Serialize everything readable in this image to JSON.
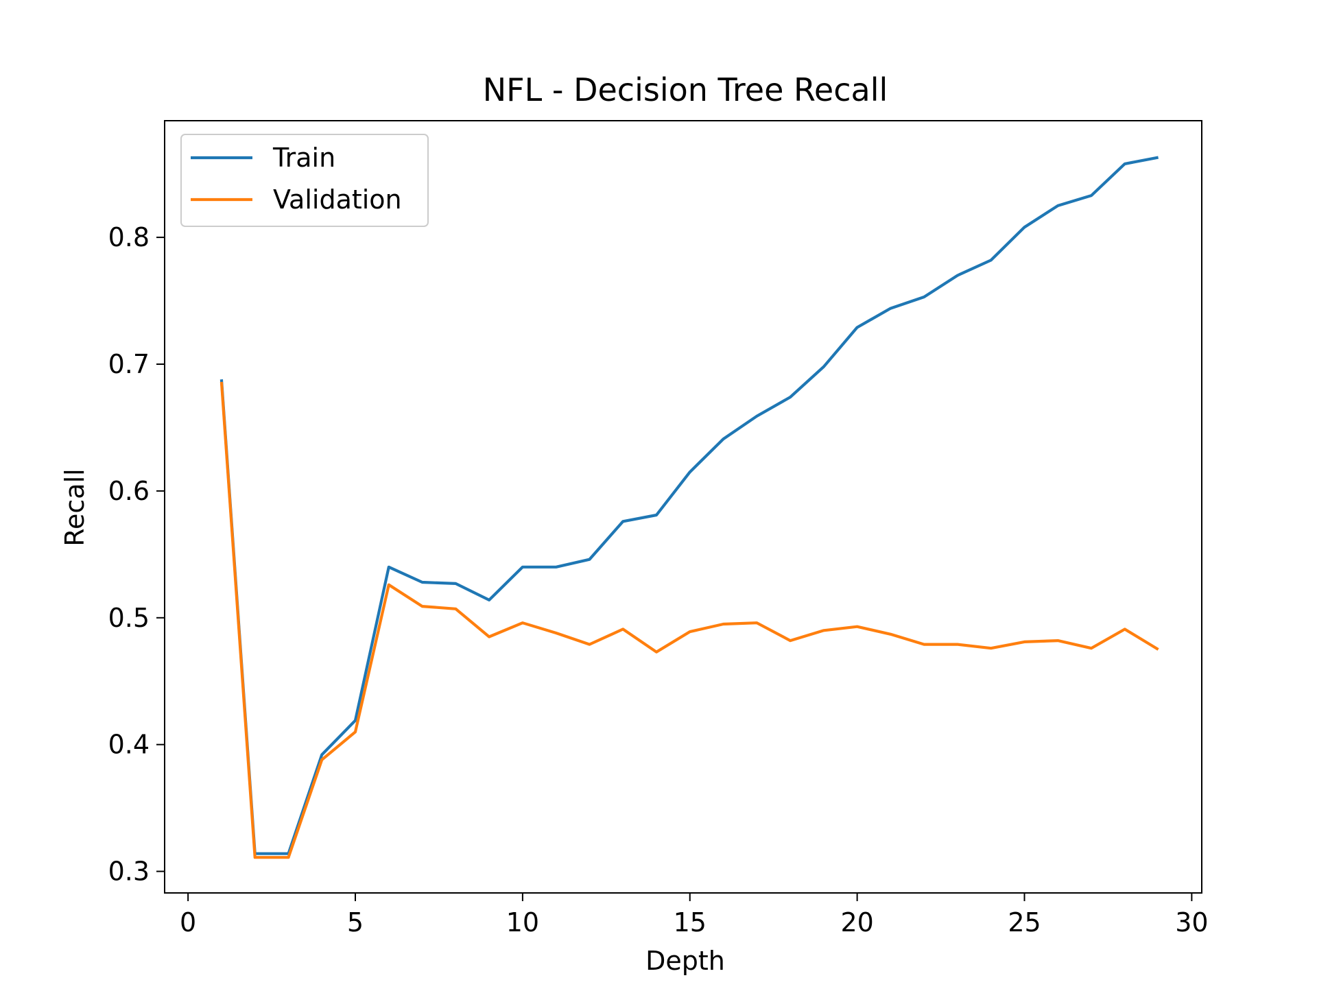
{
  "chart_data": {
    "type": "line",
    "title": "NFL - Decision Tree Recall",
    "xlabel": "Depth",
    "ylabel": "Recall",
    "xlim": [
      -0.7,
      30.3
    ],
    "ylim": [
      0.283,
      0.892
    ],
    "xticks": [
      0,
      5,
      10,
      15,
      20,
      25,
      30
    ],
    "xtick_labels": [
      "0",
      "5",
      "10",
      "15",
      "20",
      "25",
      "30"
    ],
    "yticks": [
      0.3,
      0.4,
      0.5,
      0.6,
      0.7,
      0.8
    ],
    "ytick_labels": [
      "0.3",
      "0.4",
      "0.5",
      "0.6",
      "0.7",
      "0.8"
    ],
    "grid": false,
    "legend_position": "top-left",
    "x": [
      1,
      2,
      3,
      4,
      5,
      6,
      7,
      8,
      9,
      10,
      11,
      12,
      13,
      14,
      15,
      16,
      17,
      18,
      19,
      20,
      21,
      22,
      23,
      24,
      25,
      26,
      27,
      28,
      29
    ],
    "series": [
      {
        "name": "Train",
        "color": "#1f77b4",
        "values": [
          0.688,
          0.314,
          0.314,
          0.392,
          0.419,
          0.54,
          0.528,
          0.527,
          0.514,
          0.54,
          0.54,
          0.546,
          0.576,
          0.581,
          0.615,
          0.641,
          0.659,
          0.674,
          0.698,
          0.729,
          0.744,
          0.753,
          0.77,
          0.782,
          0.808,
          0.825,
          0.833,
          0.858,
          0.863
        ]
      },
      {
        "name": "Validation",
        "color": "#ff7f0e",
        "values": [
          0.686,
          0.311,
          0.311,
          0.388,
          0.41,
          0.526,
          0.509,
          0.507,
          0.485,
          0.496,
          0.488,
          0.479,
          0.491,
          0.473,
          0.489,
          0.495,
          0.496,
          0.482,
          0.49,
          0.493,
          0.487,
          0.479,
          0.479,
          0.476,
          0.481,
          0.482,
          0.476,
          0.491,
          0.475
        ]
      }
    ]
  }
}
